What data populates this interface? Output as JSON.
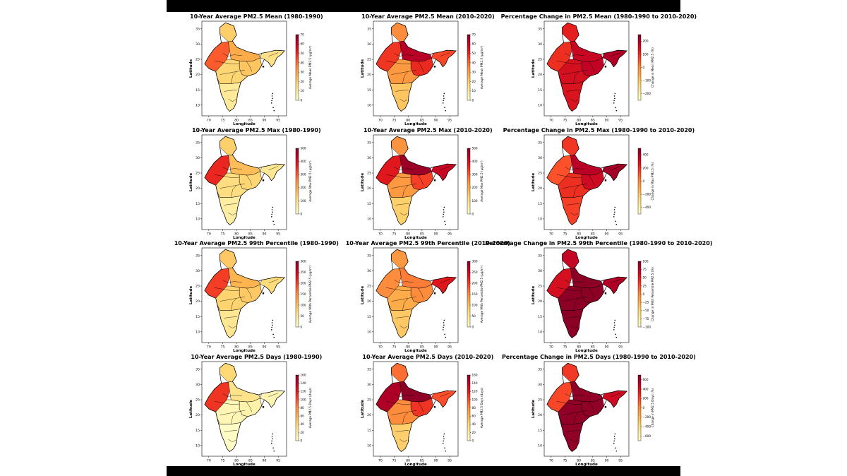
{
  "figure": {
    "axis_labels": {
      "x": "Longitude",
      "y": "Latitude"
    },
    "x_ticks": [
      "70",
      "75",
      "80",
      "85",
      "90",
      "95"
    ],
    "y_ticks": [
      "10",
      "15",
      "20",
      "25",
      "30",
      "35"
    ],
    "colormap": [
      "#ffffcc",
      "#ffeda0",
      "#fed976",
      "#feb24c",
      "#fd8d3c",
      "#fc4e2a",
      "#e31a1c",
      "#bd0026",
      "#800026"
    ]
  },
  "chart_data": [
    {
      "type": "choropleth",
      "title": "10-Year Average PM2.5 Mean (1980-1990)",
      "colorbar_label": "Average Mean PM2.5 (µg/m³)",
      "colorbar_ticks": [
        "0",
        "10",
        "20",
        "30",
        "40",
        "50",
        "60",
        "70"
      ],
      "range": [
        0,
        70
      ],
      "region_values": {
        "north": 20,
        "northwest": 42,
        "gangetic": 28,
        "east": 22,
        "central": 18,
        "south": 10,
        "northeast": 14
      }
    },
    {
      "type": "choropleth",
      "title": "10-Year Average PM2.5 Mean (2010-2020)",
      "colorbar_label": "Average Mean PM2.5 (µg/m³)",
      "colorbar_ticks": [
        "0",
        "10",
        "20",
        "30",
        "40",
        "50",
        "60",
        "70"
      ],
      "range": [
        0,
        70
      ],
      "region_values": {
        "north": 35,
        "northwest": 48,
        "gangetic": 62,
        "east": 50,
        "central": 32,
        "south": 22,
        "northeast": 45
      }
    },
    {
      "type": "choropleth",
      "title": "Percentage Change in PM2.5 Mean (1980-1990 to 2010-2020)",
      "colorbar_label": "Change in Mean PM2.5 (%)",
      "colorbar_ticks": [
        "−200",
        "−100",
        "0",
        "100",
        "200"
      ],
      "range": [
        -250,
        250
      ],
      "region_values": {
        "north": 120,
        "northwest": 100,
        "gangetic": 170,
        "east": 180,
        "central": 150,
        "south": 140,
        "northeast": 200
      }
    },
    {
      "type": "choropleth",
      "title": "10-Year Average PM2.5 Max (1980-1990)",
      "colorbar_label": "Average Max PM2.5 (µg/m³)",
      "colorbar_ticks": [
        "0",
        "100",
        "200",
        "300",
        "400",
        "500"
      ],
      "range": [
        0,
        500
      ],
      "region_values": {
        "north": 140,
        "northwest": 360,
        "gangetic": 170,
        "east": 130,
        "central": 110,
        "south": 60,
        "northeast": 80
      }
    },
    {
      "type": "choropleth",
      "title": "10-Year Average PM2.5 Max (2010-2020)",
      "colorbar_label": "Average Max PM2.5 (µg/m³)",
      "colorbar_ticks": [
        "0",
        "100",
        "200",
        "300",
        "400",
        "500"
      ],
      "range": [
        0,
        500
      ],
      "region_values": {
        "north": 240,
        "northwest": 380,
        "gangetic": 470,
        "east": 330,
        "central": 230,
        "south": 140,
        "northeast": 420
      }
    },
    {
      "type": "choropleth",
      "title": "Percentage Change in PM2.5 Max (1980-1990 to 2010-2020)",
      "colorbar_label": "Change in Max PM2.5 (%)",
      "colorbar_ticks": [
        "−400",
        "−200",
        "0",
        "200",
        "400"
      ],
      "range": [
        -500,
        500
      ],
      "region_values": {
        "north": 180,
        "northwest": 120,
        "gangetic": 380,
        "east": 320,
        "central": 200,
        "south": 160,
        "northeast": 430
      }
    },
    {
      "type": "choropleth",
      "title": "10-Year Average PM2.5 99th Percentile (1980-1990)",
      "colorbar_label": "Average 99th Percentile PM2.5 (µg/m³)",
      "colorbar_ticks": [
        "0",
        "50",
        "100",
        "150",
        "200",
        "250",
        "300"
      ],
      "range": [
        0,
        300
      ],
      "region_values": {
        "north": 90,
        "northwest": 200,
        "gangetic": 110,
        "east": 90,
        "central": 80,
        "south": 50,
        "northeast": 70
      }
    },
    {
      "type": "choropleth",
      "title": "10-Year Average PM2.5 99th Percentile (2010-2020)",
      "colorbar_label": "Average 99th Percentile PM2.5 (µg/m³)",
      "colorbar_ticks": [
        "0",
        "50",
        "100",
        "150",
        "200",
        "250",
        "300"
      ],
      "range": [
        0,
        300
      ],
      "region_values": {
        "north": 140,
        "northwest": 150,
        "gangetic": 160,
        "east": 150,
        "central": 120,
        "south": 90,
        "northeast": 230
      }
    },
    {
      "type": "choropleth",
      "title": "Percentage Change in PM2.5 99th Percentile (1980-1990 to 2010-2020)",
      "colorbar_label": "Change in 99th Percentile PM2.5 (%)",
      "colorbar_ticks": [
        "−100",
        "−75",
        "−50",
        "−25",
        "0",
        "25",
        "50",
        "75",
        "100"
      ],
      "range": [
        -100,
        100
      ],
      "region_values": {
        "north": 70,
        "northwest": 60,
        "gangetic": 95,
        "east": 95,
        "central": 95,
        "south": 95,
        "northeast": 80
      }
    },
    {
      "type": "choropleth",
      "title": "10-Year Average PM2.5 Days (1980-1990)",
      "colorbar_label": "Average PM2.5 Days (days)",
      "colorbar_ticks": [
        "0",
        "20",
        "40",
        "60",
        "80",
        "100",
        "120",
        "140",
        "160"
      ],
      "range": [
        0,
        160
      ],
      "region_values": {
        "north": 40,
        "northwest": 110,
        "gangetic": 30,
        "east": 15,
        "central": 10,
        "south": 3,
        "northeast": 12
      }
    },
    {
      "type": "choropleth",
      "title": "10-Year Average PM2.5 Days (2010-2020)",
      "colorbar_label": "Average PM2.5 Days (days)",
      "colorbar_ticks": [
        "0",
        "20",
        "40",
        "60",
        "80",
        "100",
        "120",
        "140",
        "160"
      ],
      "range": [
        0,
        160
      ],
      "region_values": {
        "north": 90,
        "northwest": 145,
        "gangetic": 155,
        "east": 110,
        "central": 80,
        "south": 45,
        "northeast": 100
      }
    },
    {
      "type": "choropleth",
      "title": "Percentage Change in PM2.5 Days (1980-1990 to 2010-2020)",
      "colorbar_label": "Change in PM2.5 Days (%)",
      "colorbar_ticks": [
        "−600",
        "−400",
        "−200",
        "0",
        "200",
        "400",
        "600"
      ],
      "range": [
        -700,
        700
      ],
      "region_values": {
        "north": 250,
        "northwest": 200,
        "gangetic": 650,
        "east": 650,
        "central": 650,
        "south": 650,
        "northeast": 450
      }
    }
  ]
}
